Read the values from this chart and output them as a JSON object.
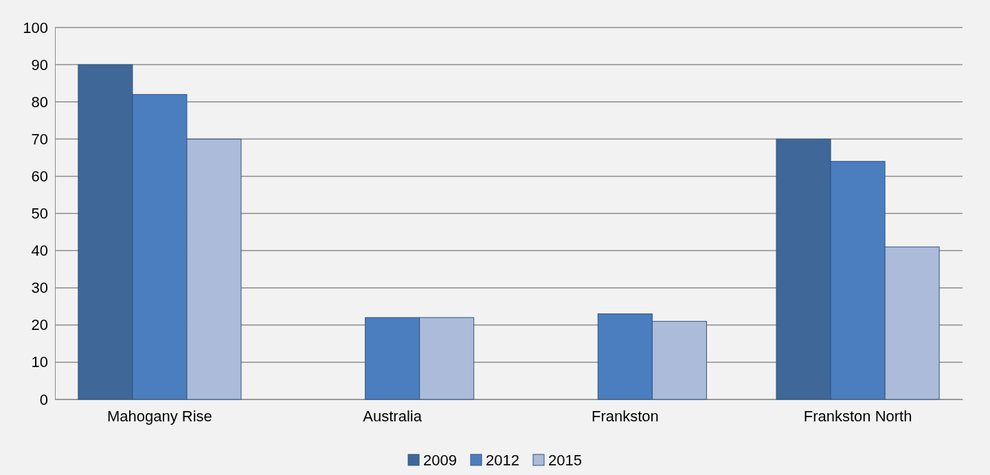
{
  "chart_data": {
    "type": "bar",
    "categories": [
      "Mahogany Rise",
      "Australia",
      "Frankston",
      "Frankston North"
    ],
    "series": [
      {
        "name": "2009",
        "color": "#3f6899",
        "values": [
          90,
          null,
          null,
          70
        ]
      },
      {
        "name": "2012",
        "color": "#4a7ebf",
        "values": [
          82,
          22,
          23,
          64
        ]
      },
      {
        "name": "2015",
        "color": "#abbbd9",
        "values": [
          70,
          22,
          21,
          41
        ]
      }
    ],
    "ylim": [
      0,
      100
    ],
    "yticks": [
      0,
      10,
      20,
      30,
      40,
      50,
      60,
      70,
      80,
      90,
      100
    ],
    "grid": "y",
    "legend": "bottom"
  }
}
